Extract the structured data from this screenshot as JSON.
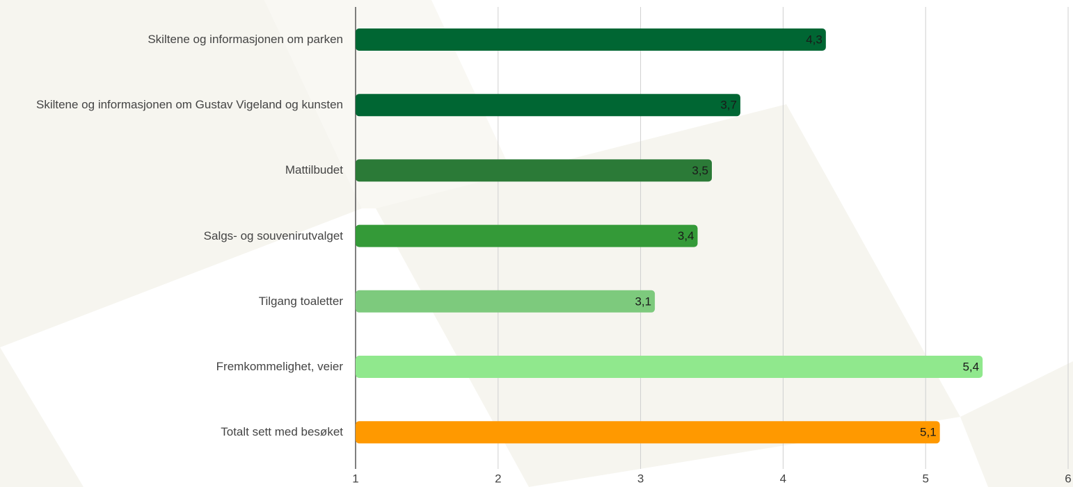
{
  "chart_data": {
    "type": "barh",
    "categories": [
      "Skiltene og informasjonen om parken",
      "Skiltene og informasjonen om Gustav Vigeland og kunsten",
      "Mattilbudet",
      "Salgs- og souvenirutvalget",
      "Tilgang toaletter",
      "Fremkommelighet, veier",
      "Totalt sett med besøket"
    ],
    "values": [
      4.3,
      3.7,
      3.5,
      3.4,
      3.1,
      5.4,
      5.1
    ],
    "value_labels": [
      "4,3",
      "3,7",
      "3,5",
      "3,4",
      "3,1",
      "5,4",
      "5,1"
    ],
    "colors": [
      "#006633",
      "#006633",
      "#2b7a37",
      "#349a38",
      "#7dca7d",
      "#90e88d",
      "#ff9900"
    ],
    "xlim": [
      1,
      6
    ],
    "xticks": [
      1,
      2,
      3,
      4,
      5,
      6
    ],
    "grid": true
  }
}
